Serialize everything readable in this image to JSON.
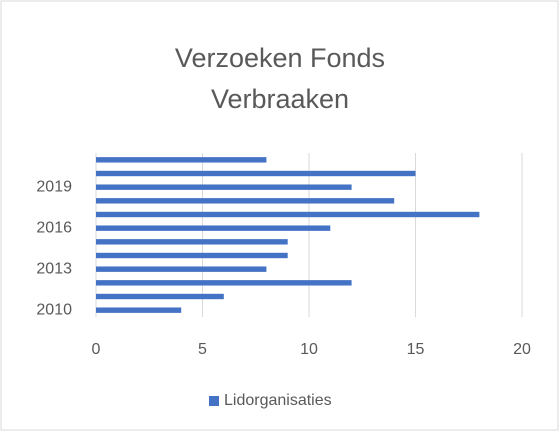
{
  "chart_data": {
    "type": "bar",
    "orientation": "horizontal",
    "title": "Verzoeken Fonds Verbraaken",
    "categories": [
      "2010",
      null,
      null,
      "2013",
      null,
      null,
      "2016",
      null,
      null,
      "2019",
      null,
      null
    ],
    "series": [
      {
        "name": "Lidorganisaties",
        "color": "#4472c4",
        "values": [
          4,
          6,
          12,
          8,
          9,
          9,
          11,
          18,
          14,
          12,
          15,
          8
        ]
      }
    ],
    "xlim": [
      0,
      20
    ],
    "xticks": [
      0,
      5,
      10,
      15,
      20
    ],
    "grid": true,
    "legend": "bottom"
  }
}
